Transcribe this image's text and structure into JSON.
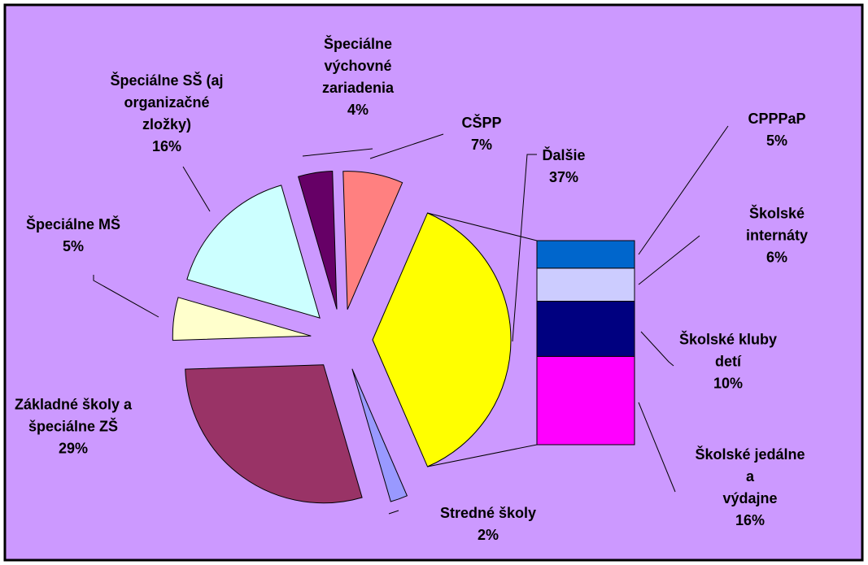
{
  "chart_data": {
    "type": "pie",
    "categories": [
      "CŠPP",
      "Špeciálne\nvýchovné\nzariadenia",
      "Špeciálne SŠ (aj\norganizačné\nzložky)",
      "Špeciálne MŠ",
      "Základné školy a\nšpeciálne ZŠ",
      "Stredné školy",
      "Ďalšie"
    ],
    "values": [
      7,
      4,
      16,
      5,
      29,
      2,
      37
    ],
    "value_labels": [
      "7%",
      "4%",
      "16%",
      "5%",
      "29%",
      "2%",
      "37%"
    ],
    "colors": [
      "#ff8080",
      "#660066",
      "#ccffff",
      "#ffffcc",
      "#993366",
      "#9999ff",
      "#ffff00"
    ],
    "breakdown": {
      "categories": [
        "CPPPaP",
        "Školské internáty",
        "Školské kluby\ndetí",
        "Školské jedálne a\nvýdajne"
      ],
      "values": [
        5,
        6,
        10,
        16
      ],
      "value_labels": [
        "5%",
        "6%",
        "10%",
        "16%"
      ],
      "colors": [
        "#0066cc",
        "#ccccff",
        "#000080",
        "#ff00ff"
      ]
    }
  }
}
